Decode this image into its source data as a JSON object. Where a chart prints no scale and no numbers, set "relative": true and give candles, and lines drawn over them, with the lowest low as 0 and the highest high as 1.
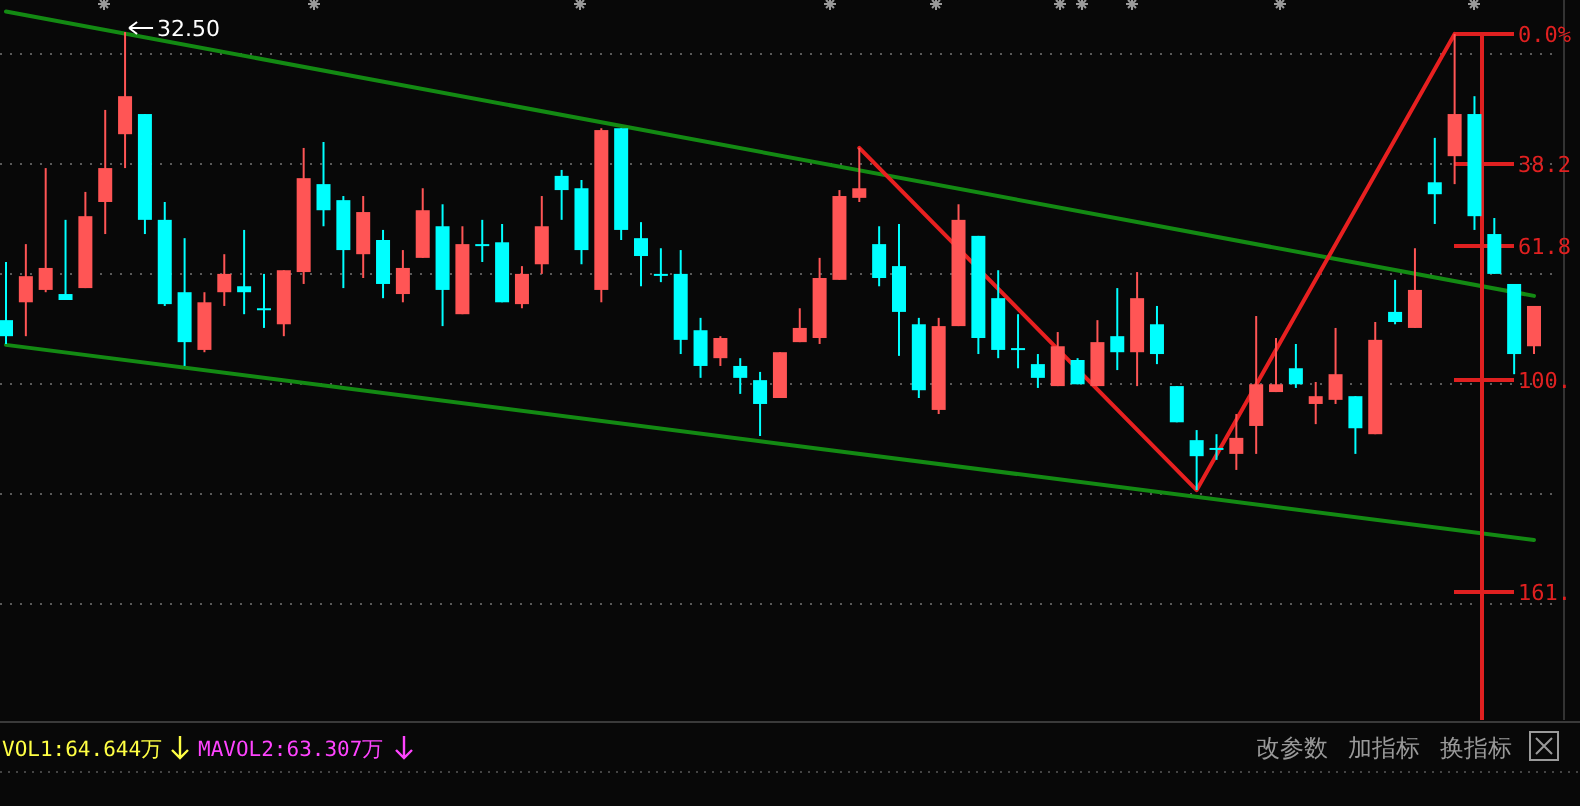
{
  "chart_data": {
    "type": "candlestick",
    "relative": true,
    "categories": [
      null,
      null,
      null,
      null,
      null,
      null,
      null,
      null,
      null,
      null,
      null,
      null,
      null,
      null,
      null,
      null,
      null,
      null,
      null,
      null,
      null,
      null,
      null,
      null,
      null,
      null,
      null,
      null,
      null,
      null,
      null,
      null,
      null,
      null,
      null,
      null,
      null,
      null,
      null,
      null,
      null,
      null,
      null,
      null,
      null,
      null,
      null,
      null,
      null,
      null,
      null,
      null,
      null,
      null,
      null,
      null,
      null,
      null,
      null,
      null,
      null,
      null,
      null,
      null,
      null,
      null,
      null,
      null,
      null,
      null,
      null,
      null,
      null,
      null,
      null,
      null,
      null,
      null
    ],
    "ohlc": [
      [
        0.371,
        0.498,
        0.319,
        0.336
      ],
      [
        0.41,
        0.537,
        0.336,
        0.467
      ],
      [
        0.437,
        0.703,
        0.432,
        0.485
      ],
      [
        0.428,
        0.59,
        0.415,
        0.415
      ],
      [
        0.441,
        0.651,
        0.441,
        0.598
      ],
      [
        0.629,
        0.83,
        0.559,
        0.703
      ],
      [
        0.777,
        1,
        0.703,
        0.86
      ],
      [
        0.821,
        0.821,
        0.559,
        0.59
      ],
      [
        0.59,
        0.629,
        0.402,
        0.406
      ],
      [
        0.432,
        0.55,
        0.271,
        0.323
      ],
      [
        0.306,
        0.432,
        0.301,
        0.41
      ],
      [
        0.432,
        0.515,
        0.402,
        0.472
      ],
      [
        0.445,
        0.568,
        0.384,
        0.432
      ],
      [
        0.397,
        0.472,
        0.354,
        0.397
      ],
      [
        0.362,
        0.48,
        0.336,
        0.48
      ],
      [
        0.476,
        0.747,
        0.45,
        0.681
      ],
      [
        0.668,
        0.76,
        0.576,
        0.611
      ],
      [
        0.633,
        0.642,
        0.441,
        0.524
      ],
      [
        0.515,
        0.642,
        0.463,
        0.607
      ],
      [
        0.546,
        0.568,
        0.419,
        0.45
      ],
      [
        0.428,
        0.524,
        0.41,
        0.485
      ],
      [
        0.507,
        0.659,
        0.507,
        0.611
      ],
      [
        0.576,
        0.624,
        0.358,
        0.437
      ],
      [
        0.384,
        0.576,
        0.384,
        0.537
      ],
      [
        0.537,
        0.59,
        0.498,
        0.537
      ],
      [
        0.541,
        0.581,
        0.41,
        0.41
      ],
      [
        0.406,
        0.489,
        0.397,
        0.472
      ],
      [
        0.493,
        0.642,
        0.472,
        0.576
      ],
      [
        0.686,
        0.699,
        0.59,
        0.655
      ],
      [
        0.659,
        0.677,
        0.493,
        0.524
      ],
      [
        0.437,
        0.79,
        0.41,
        0.786
      ],
      [
        0.79,
        0.79,
        0.546,
        0.568
      ],
      [
        0.55,
        0.585,
        0.445,
        0.511
      ],
      [
        0.472,
        0.528,
        0.454,
        0.472
      ],
      [
        0.472,
        0.524,
        0.297,
        0.328
      ],
      [
        0.349,
        0.376,
        0.245,
        0.271
      ],
      [
        0.288,
        0.336,
        0.271,
        0.332
      ],
      [
        0.271,
        0.288,
        0.21,
        0.245
      ],
      [
        0.24,
        0.258,
        0.118,
        0.188
      ],
      [
        0.201,
        0.301,
        0.201,
        0.301
      ],
      [
        0.323,
        0.397,
        0.323,
        0.354
      ],
      [
        0.332,
        0.507,
        0.319,
        0.463
      ],
      [
        0.459,
        0.655,
        0.459,
        0.642
      ],
      [
        0.638,
        0.747,
        0.629,
        0.659
      ],
      [
        0.537,
        0.576,
        0.445,
        0.463
      ],
      [
        0.489,
        0.581,
        0.293,
        0.389
      ],
      [
        0.362,
        0.376,
        0.201,
        0.218
      ],
      [
        0.175,
        0.376,
        0.166,
        0.358
      ],
      [
        0.358,
        0.624,
        0.358,
        0.59
      ],
      [
        0.555,
        0.555,
        0.297,
        0.332
      ],
      [
        0.419,
        0.48,
        0.288,
        0.306
      ],
      [
        0.31,
        0.384,
        0.266,
        0.31
      ],
      [
        0.275,
        0.297,
        0.223,
        0.245
      ],
      [
        0.227,
        0.345,
        0.227,
        0.314
      ],
      [
        0.284,
        0.288,
        0.231,
        0.231
      ],
      [
        0.227,
        0.371,
        0.227,
        0.323
      ],
      [
        0.336,
        0.441,
        0.262,
        0.301
      ],
      [
        0.301,
        0.476,
        0.227,
        0.419
      ],
      [
        0.362,
        0.402,
        0.275,
        0.297
      ],
      [
        0.227,
        0.227,
        0.148,
        0.148
      ],
      [
        0.109,
        0.131,
        0,
        0.074
      ],
      [
        0.092,
        0.122,
        0.066,
        0.092
      ],
      [
        0.079,
        0.166,
        0.044,
        0.114
      ],
      [
        0.14,
        0.38,
        0.079,
        0.231
      ],
      [
        0.214,
        0.332,
        0.214,
        0.231
      ],
      [
        0.266,
        0.319,
        0.223,
        0.231
      ],
      [
        0.188,
        0.236,
        0.144,
        0.205
      ],
      [
        0.197,
        0.354,
        0.188,
        0.253
      ],
      [
        0.205,
        0.205,
        0.079,
        0.135
      ],
      [
        0.122,
        0.367,
        0.122,
        0.328
      ],
      [
        0.389,
        0.459,
        0.362,
        0.367
      ],
      [
        0.354,
        0.528,
        0.354,
        0.437
      ],
      [
        0.672,
        0.769,
        0.581,
        0.646
      ],
      [
        0.729,
        0.996,
        0.668,
        0.821
      ],
      [
        0.821,
        0.86,
        0.568,
        0.598
      ],
      [
        0.559,
        0.594,
        0.472,
        0.472
      ],
      [
        0.45,
        0.45,
        0.253,
        0.297
      ],
      [
        0.314,
        0.402,
        0.297,
        0.402
      ]
    ],
    "colors": [
      "#00ffff",
      "#ff5555",
      "#ff5555",
      "#00ffff",
      "#ff5555",
      "#ff5555",
      "#ff5555",
      "#00ffff",
      "#00ffff",
      "#00ffff",
      "#ff5555",
      "#ff5555",
      "#00ffff",
      "#00ffff",
      "#ff5555",
      "#ff5555",
      "#00ffff",
      "#00ffff",
      "#ff5555",
      "#00ffff",
      "#ff5555",
      "#ff5555",
      "#00ffff",
      "#ff5555",
      "#00ffff",
      "#00ffff",
      "#ff5555",
      "#ff5555",
      "#00ffff",
      "#00ffff",
      "#ff5555",
      "#00ffff",
      "#00ffff",
      "#00ffff",
      "#00ffff",
      "#00ffff",
      "#ff5555",
      "#00ffff",
      "#00ffff",
      "#ff5555",
      "#ff5555",
      "#ff5555",
      "#ff5555",
      "#ff5555",
      "#00ffff",
      "#00ffff",
      "#00ffff",
      "#ff5555",
      "#ff5555",
      "#00ffff",
      "#00ffff",
      "#00ffff",
      "#00ffff",
      "#ff5555",
      "#00ffff",
      "#ff5555",
      "#00ffff",
      "#ff5555",
      "#00ffff",
      "#00ffff",
      "#00ffff",
      "#00ffff",
      "#ff5555",
      "#ff5555",
      "#ff5555",
      "#00ffff",
      "#ff5555",
      "#ff5555",
      "#00ffff",
      "#ff5555",
      "#00ffff",
      "#ff5555",
      "#00ffff",
      "#ff5555",
      "#00ffff",
      "#00ffff",
      "#00ffff",
      "#ff5555"
    ],
    "series": [
      {
        "type": "line",
        "color": "#138a13",
        "values": [
          1.045,
          null,
          null,
          null,
          null,
          null,
          null,
          null,
          null,
          null,
          null,
          null,
          null,
          null,
          null,
          null,
          null,
          null,
          null,
          null,
          null,
          null,
          null,
          null,
          null,
          null,
          null,
          null,
          null,
          null,
          null,
          null,
          null,
          null,
          null,
          null,
          null,
          null,
          null,
          null,
          null,
          null,
          null,
          null,
          null,
          null,
          null,
          null,
          null,
          null,
          null,
          null,
          null,
          null,
          null,
          null,
          null,
          null,
          null,
          null,
          null,
          null,
          null,
          null,
          null,
          null,
          null,
          null,
          null,
          null,
          null,
          null,
          null,
          null,
          null,
          null,
          null,
          0.424
        ]
      },
      {
        "type": "line",
        "color": "#138a13",
        "values": [
          0.317,
          null,
          null,
          null,
          null,
          null,
          null,
          null,
          null,
          null,
          null,
          null,
          null,
          null,
          null,
          null,
          null,
          null,
          null,
          null,
          null,
          null,
          null,
          null,
          null,
          null,
          null,
          null,
          null,
          null,
          null,
          null,
          null,
          null,
          null,
          null,
          null,
          null,
          null,
          null,
          null,
          null,
          null,
          null,
          null,
          null,
          null,
          null,
          null,
          null,
          null,
          null,
          null,
          null,
          null,
          null,
          null,
          null,
          null,
          null,
          null,
          null,
          null,
          null,
          null,
          null,
          null,
          null,
          null,
          null,
          null,
          null,
          null,
          null,
          null,
          null,
          null,
          -0.109
        ]
      },
      {
        "type": "line",
        "color": "#e82020",
        "values": [
          null,
          null,
          null,
          null,
          null,
          null,
          null,
          null,
          null,
          null,
          null,
          null,
          null,
          null,
          null,
          null,
          null,
          null,
          null,
          null,
          null,
          null,
          null,
          null,
          null,
          null,
          null,
          null,
          null,
          null,
          null,
          null,
          null,
          null,
          null,
          null,
          null,
          null,
          null,
          null,
          null,
          null,
          null,
          0.747,
          null,
          null,
          null,
          null,
          null,
          null,
          null,
          null,
          null,
          null,
          null,
          null,
          null,
          null,
          null,
          null,
          0,
          null,
          null,
          null,
          null,
          null,
          null,
          null,
          null,
          null,
          null,
          null,
          null,
          0.996,
          null,
          null,
          null,
          null
        ]
      }
    ],
    "annotations": [
      "32.50",
      "VOL1:64.644万",
      "MAVOL2:63.307万",
      "改参数",
      "加指标",
      "换指标",
      "0.0%",
      "38.2",
      "61.8",
      "100.",
      "161."
    ]
  }
}
